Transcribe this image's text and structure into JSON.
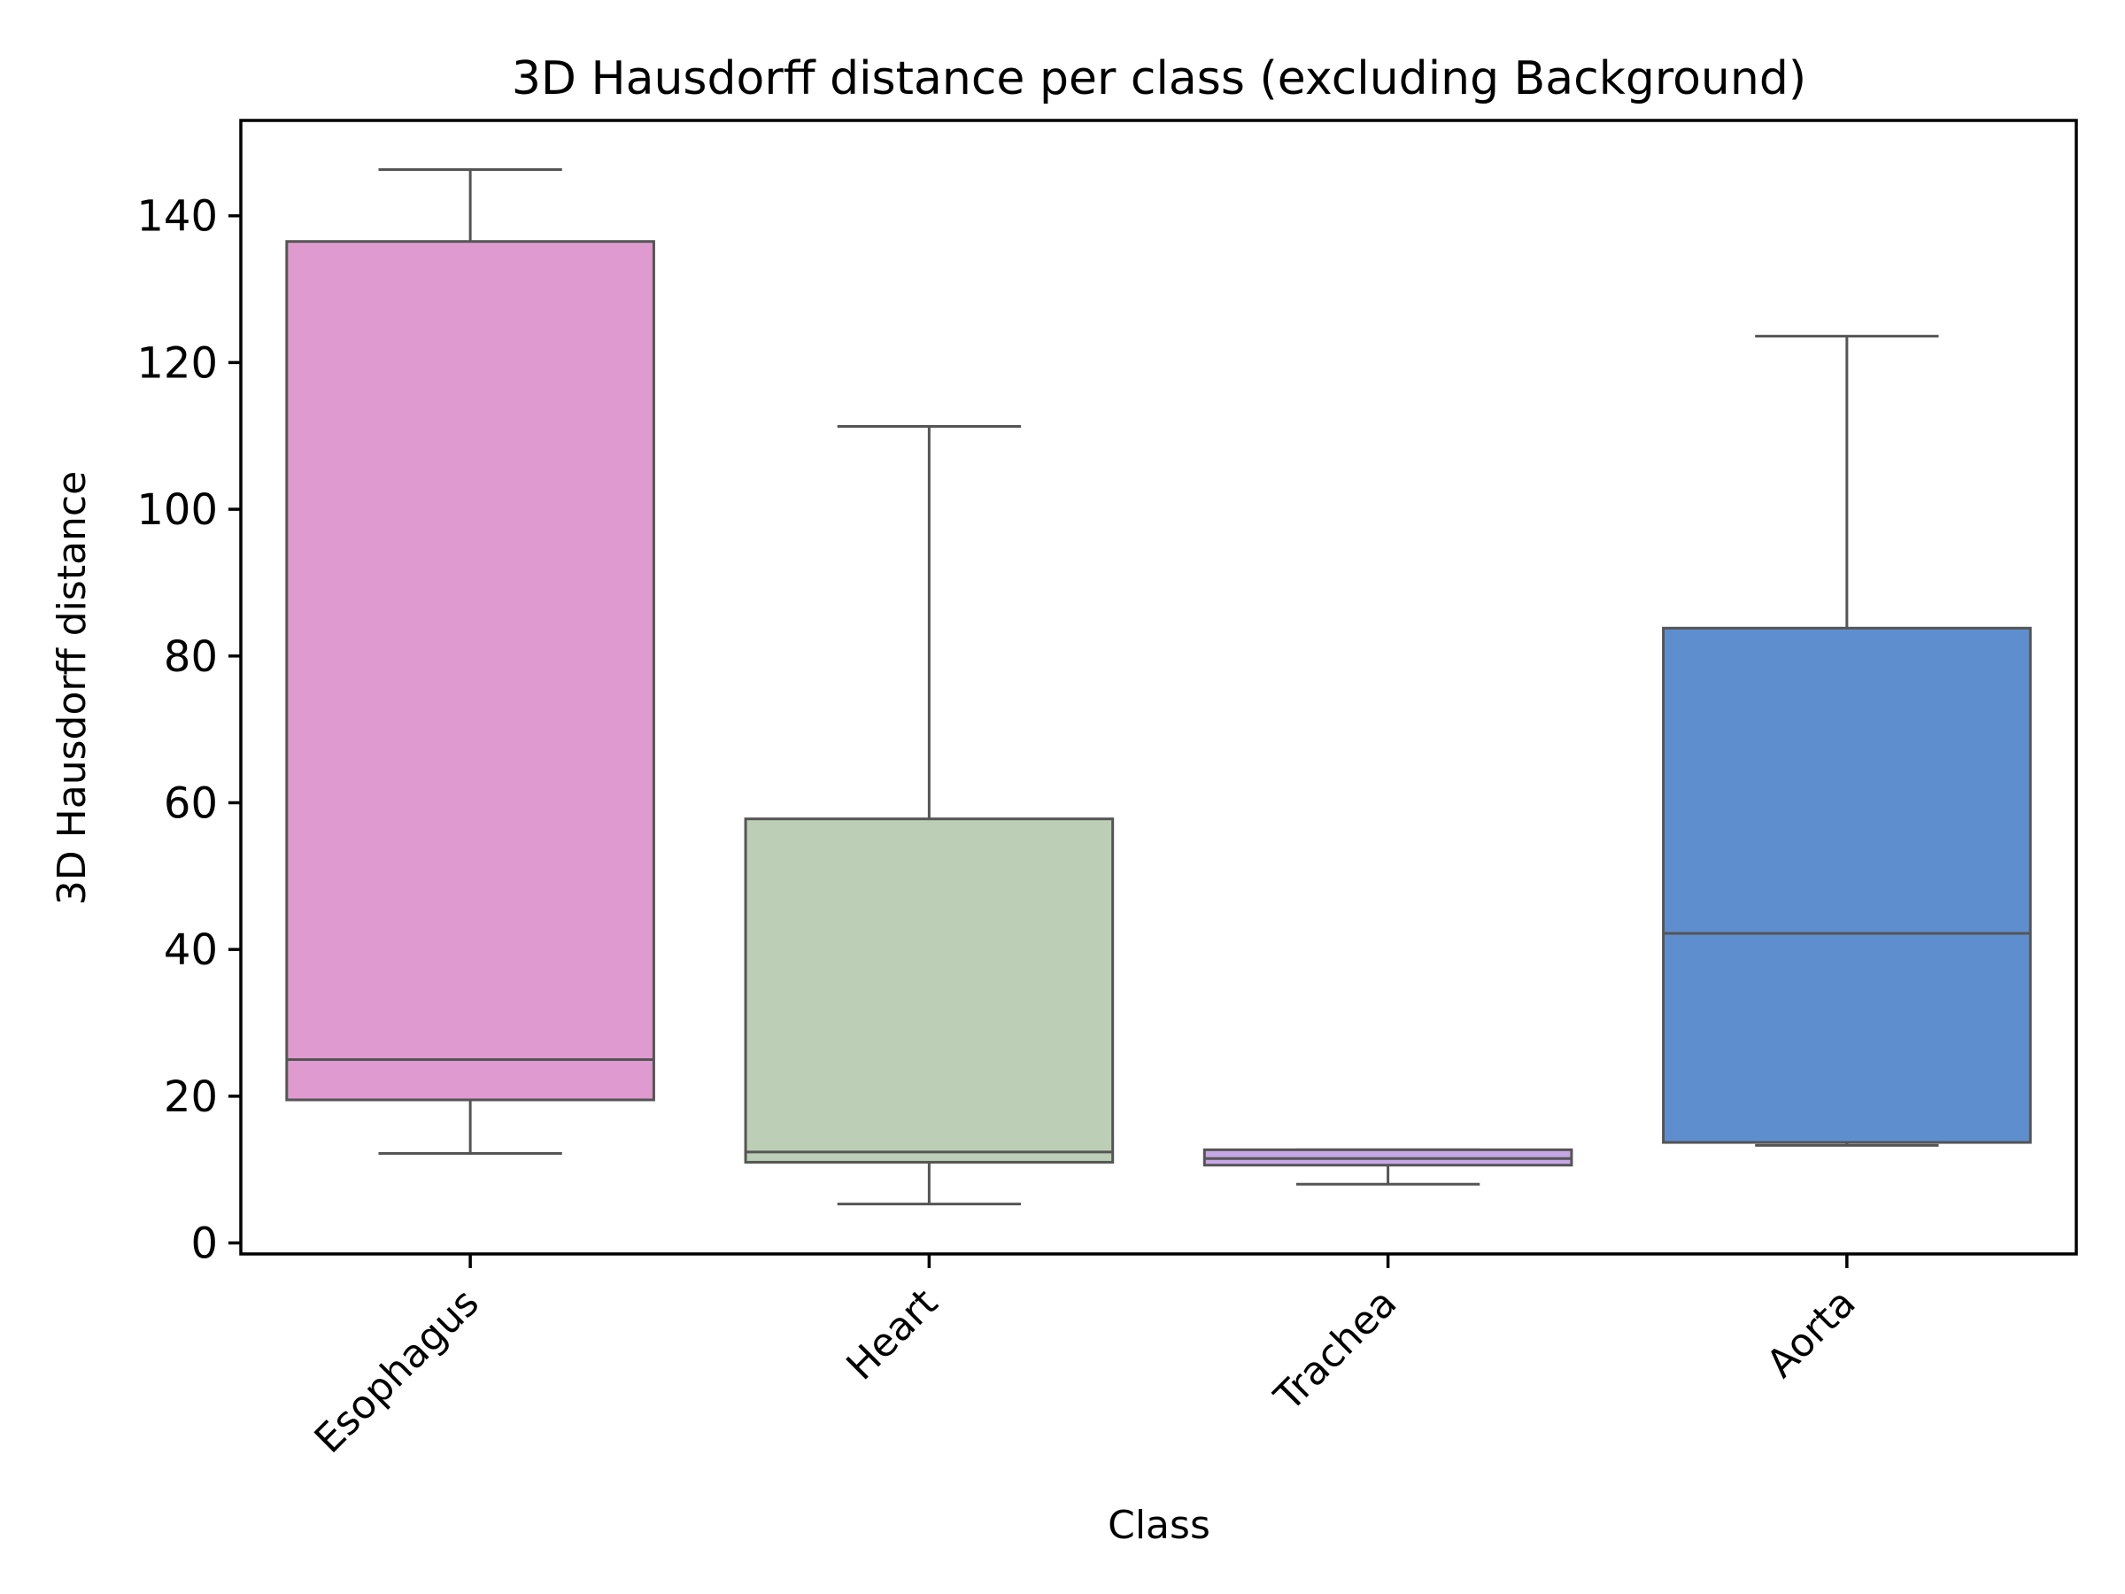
{
  "chart_data": {
    "type": "box",
    "title": "3D Hausdorff distance per class (excluding Background)",
    "xlabel": "Class",
    "ylabel": "3D Hausdorff distance",
    "ylim": [
      -1.5,
      153
    ],
    "yticks": [
      0,
      20,
      40,
      60,
      80,
      100,
      120,
      140
    ],
    "grid": false,
    "categories": [
      "Esophagus",
      "Heart",
      "Trachea",
      "Aorta"
    ],
    "colors": [
      "#df9ad0",
      "#bccfb6",
      "#c6a7e6",
      "#5f8ecf"
    ],
    "boxes": [
      {
        "category": "Esophagus",
        "whisker_low": 12.2,
        "q1": 19.5,
        "median": 25.0,
        "q3": 136.5,
        "whisker_high": 146.3
      },
      {
        "category": "Heart",
        "whisker_low": 5.3,
        "q1": 11.0,
        "median": 12.4,
        "q3": 57.8,
        "whisker_high": 111.3
      },
      {
        "category": "Trachea",
        "whisker_low": 8.0,
        "q1": 10.6,
        "median": 11.5,
        "q3": 12.7,
        "whisker_high": 12.7
      },
      {
        "category": "Aorta",
        "whisker_low": 13.3,
        "q1": 13.7,
        "median": 42.2,
        "q3": 83.8,
        "whisker_high": 123.6
      }
    ]
  }
}
